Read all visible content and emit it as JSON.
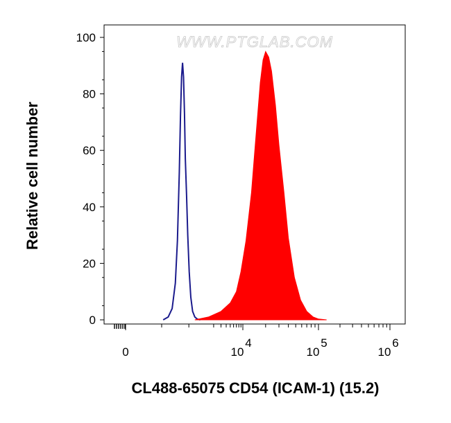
{
  "watermark": "WWW.PTGLAB.COM",
  "chart_data": {
    "type": "area",
    "title": "",
    "xlabel": "CL488-65075 CD54 (ICAM-1) (15.2)",
    "ylabel": "Relative cell number",
    "x_scale": "biexponential",
    "ylim": [
      0,
      100
    ],
    "y_ticks": [
      0,
      20,
      40,
      60,
      80,
      100
    ],
    "x_ticks": [
      {
        "value": 0,
        "label": "0"
      },
      {
        "value": 10000,
        "base": "10",
        "exp": "4"
      },
      {
        "value": 100000,
        "base": "10",
        "exp": "5"
      },
      {
        "value": 1000000,
        "base": "10",
        "exp": "6"
      }
    ],
    "grid": false,
    "series": [
      {
        "style": "outline",
        "color": "#1a1a8c",
        "x": [
          110,
          150,
          190,
          230,
          260,
          290,
          310,
          330,
          350,
          370,
          390,
          410,
          440,
          470,
          510,
          560,
          620,
          700,
          800,
          950
        ],
        "y": [
          0,
          1,
          4,
          13,
          28,
          52,
          72,
          86,
          91,
          86,
          73,
          57,
          44,
          30,
          17,
          8,
          3,
          1,
          0.3,
          0
        ]
      },
      {
        "style": "filled",
        "color": "#ff0000",
        "x": [
          700,
          1500,
          3000,
          5000,
          7000,
          9000,
          11000,
          13000,
          15000,
          17000,
          18500,
          20000,
          22000,
          24000,
          27000,
          30000,
          35000,
          40000,
          48000,
          58000,
          70000,
          85000,
          100000,
          130000
        ],
        "y": [
          0,
          1,
          3,
          6,
          10,
          17,
          28,
          45,
          66,
          84,
          92,
          95,
          93,
          88,
          76,
          62,
          45,
          29,
          15,
          7,
          3,
          1,
          0.3,
          0
        ]
      }
    ]
  }
}
